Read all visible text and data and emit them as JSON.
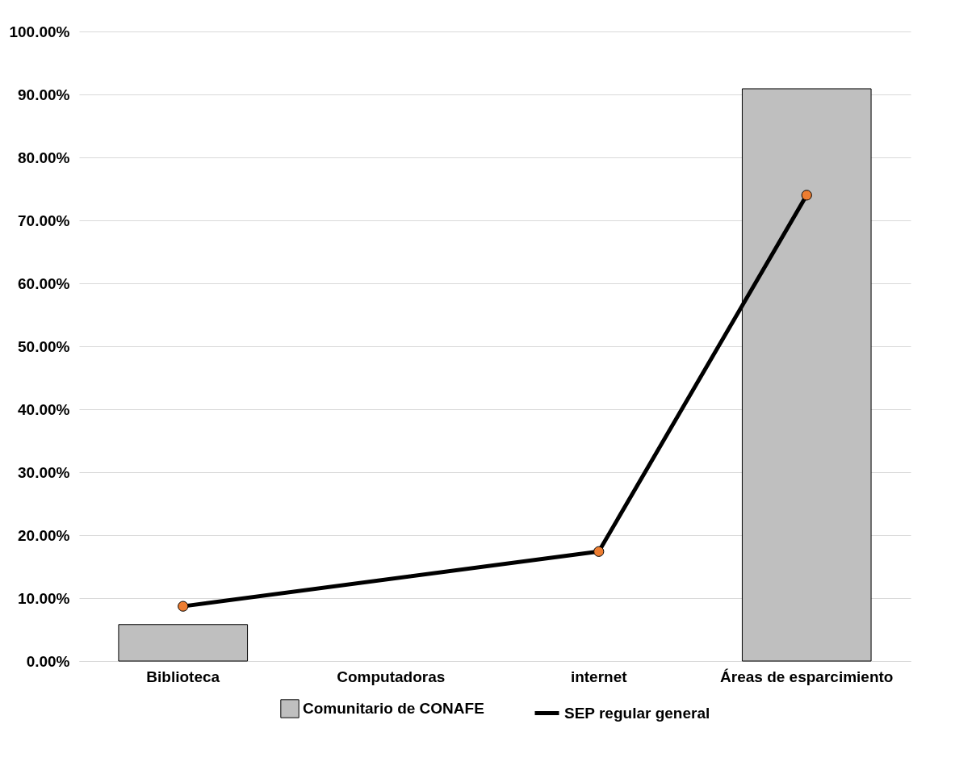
{
  "chart_data": {
    "type": "bar",
    "categories": [
      "Biblioteca",
      "Computadoras",
      "internet",
      "Áreas de esparcimiento"
    ],
    "series": [
      {
        "name": "Comunitario de CONAFE",
        "color": "#bfbfbf",
        "values": [
          5.8,
          null,
          null,
          90.9
        ]
      },
      {
        "name": "SEP regular general",
        "type": "line",
        "color": "#000000",
        "colors": [
          "#ed7d31",
          "#ed7d31",
          "#ed7d31",
          "#ed7d31"
        ],
        "values": [
          8.7,
          null,
          17.4,
          74.0
        ]
      }
    ],
    "ylim": [
      0,
      100
    ],
    "yticks": [
      {
        "value": 0,
        "label": "0.00%"
      },
      {
        "value": 10,
        "label": "10.00%"
      },
      {
        "value": 20,
        "label": "20.00%"
      },
      {
        "value": 30,
        "label": "30.00%"
      },
      {
        "value": 40,
        "label": "40.00%"
      },
      {
        "value": 50,
        "label": "50.00%"
      },
      {
        "value": 60,
        "label": "60.00%"
      },
      {
        "value": 70,
        "label": "70.00%"
      },
      {
        "value": 80,
        "label": "80.00%"
      },
      {
        "value": 90,
        "label": "90.00%"
      },
      {
        "value": 100,
        "label": "100.00%"
      }
    ],
    "grid": "y",
    "legend": "bottom",
    "marker": "circle"
  }
}
